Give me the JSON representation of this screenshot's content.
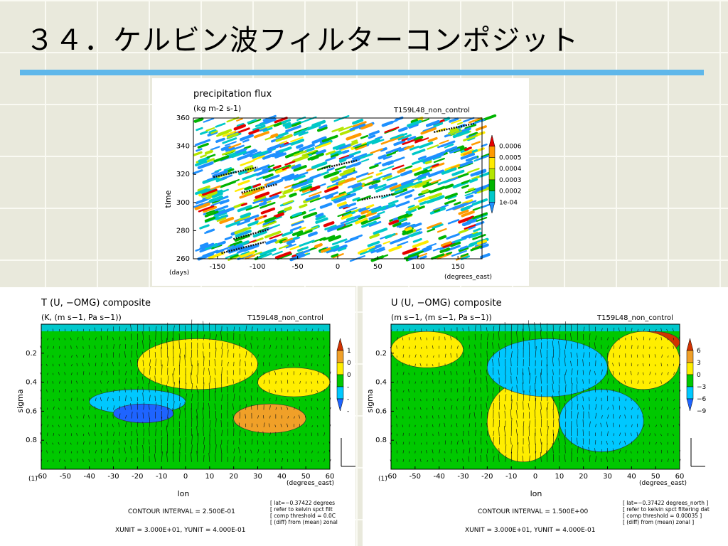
{
  "slide": {
    "title": "３４．ケルビン波フィルターコンポジット"
  },
  "colors": {
    "accent_rule": "#5fb7ea",
    "palette_precip": [
      "#1e90ff",
      "#00c8c8",
      "#00b400",
      "#b4e600",
      "#ffeb00",
      "#ff9a00",
      "#e60000"
    ],
    "palette_comp": [
      "#1e64ff",
      "#00c8ff",
      "#00c800",
      "#ffee00",
      "#f0a028",
      "#d23200"
    ]
  },
  "chart_data": [
    {
      "type": "heatmap",
      "title": "precipitation flux",
      "units": "(kg m-2 s-1)",
      "run_label": "T159L48_non_control",
      "xlabel": "(degrees_east)",
      "ylabel": "time",
      "y_units": "(days)",
      "x_ticks": [
        -150,
        -100,
        -50,
        0,
        50,
        100,
        150
      ],
      "y_ticks": [
        260,
        280,
        300,
        320,
        340,
        360
      ],
      "xlim": [
        -180,
        180
      ],
      "ylim": [
        260,
        360
      ],
      "colorbar": [
        "1e-04",
        "0.0002",
        "0.0003",
        "0.0004",
        "0.0005",
        "0.0006"
      ],
      "kelvin_tracks": [
        {
          "x": [
            -145,
            -90
          ],
          "y": [
            264,
            272
          ]
        },
        {
          "x": [
            -130,
            -85
          ],
          "y": [
            274,
            281
          ]
        },
        {
          "x": [
            -120,
            -75
          ],
          "y": [
            307,
            313
          ]
        },
        {
          "x": [
            -155,
            -100
          ],
          "y": [
            318,
            325
          ]
        },
        {
          "x": [
            -20,
            25
          ],
          "y": [
            324,
            330
          ]
        },
        {
          "x": [
            30,
            70
          ],
          "y": [
            302,
            306
          ]
        },
        {
          "x": [
            120,
            170
          ],
          "y": [
            350,
            356
          ]
        }
      ]
    },
    {
      "type": "heatmap",
      "title": "T (U, −OMG) composite",
      "units": "(K, (m s−1, Pa s−1))",
      "run_label": "T159L48_non_control",
      "xlabel": "lon",
      "x_units": "(degrees_east)",
      "ylabel": "sigma",
      "y_units": "(1)",
      "x_ticks": [
        -60,
        -50,
        -40,
        -30,
        -20,
        -10,
        0,
        10,
        20,
        30,
        40,
        50,
        60
      ],
      "y_ticks": [
        "0.2",
        "0.4",
        "0.6",
        "0.8"
      ],
      "xlim": [
        -60,
        60
      ],
      "ylim": [
        1.0,
        0.0
      ],
      "colorbar": [
        "1",
        "0",
        "0",
        "-",
        "-",
        "-"
      ],
      "contour_interval": "CONTOUR INTERVAL = 2.500E-01",
      "vector_units": "XUNIT = 3.000E+01, YUNIT = 4.000E-01",
      "notes": [
        "[ lat=−0.37422 degrees",
        "[ refer to kelvin spct filt",
        "[ comp threshold = 0.0C",
        "[ (diff) from (mean) zonal"
      ],
      "anomaly_regions": [
        {
          "level": "warm_strong",
          "lon": [
            -10,
            6
          ],
          "sigma": [
            0.15,
            0.3
          ]
        },
        {
          "level": "warm",
          "lon": [
            -20,
            30
          ],
          "sigma": [
            0.1,
            0.45
          ]
        },
        {
          "level": "warm",
          "lon": [
            30,
            60
          ],
          "sigma": [
            0.3,
            0.5
          ]
        },
        {
          "level": "warm_moderate",
          "lon": [
            20,
            50
          ],
          "sigma": [
            0.55,
            0.75
          ]
        },
        {
          "level": "cool",
          "lon": [
            -40,
            0
          ],
          "sigma": [
            0.45,
            0.62
          ]
        },
        {
          "level": "cool_strong",
          "lon": [
            -30,
            -5
          ],
          "sigma": [
            0.55,
            0.68
          ]
        }
      ]
    },
    {
      "type": "heatmap",
      "title": "U (U, −OMG) composite",
      "units": "(m s−1, (m s−1, Pa s−1))",
      "run_label": "T159L48_non_control",
      "xlabel": "lon",
      "x_units": "(degrees_east)",
      "ylabel": "sigma",
      "y_units": "(1)",
      "x_ticks": [
        -60,
        -50,
        -40,
        -30,
        -20,
        -10,
        0,
        10,
        20,
        30,
        40,
        50,
        60
      ],
      "y_ticks": [
        "0.2",
        "0.4",
        "0.6",
        "0.8"
      ],
      "xlim": [
        -60,
        60
      ],
      "ylim": [
        1.0,
        0.0
      ],
      "colorbar": [
        "6",
        "3",
        "0",
        "−3",
        "−6",
        "−9"
      ],
      "contour_interval": "CONTOUR INTERVAL = 1.500E+00",
      "vector_units": "XUNIT = 3.000E+01, YUNIT = 4.000E-01",
      "notes": [
        "[ lat=−0.37422 degrees_north ]",
        "[ refer to kelvin spct filtering dat",
        "[ comp threshold = 0.00035 ]",
        "[ (diff) from (mean) zonal ]"
      ],
      "anomaly_regions": [
        {
          "level": "warm",
          "lon": [
            -60,
            -30
          ],
          "sigma": [
            0.05,
            0.3
          ]
        },
        {
          "level": "warm_strong",
          "lon": [
            38,
            60
          ],
          "sigma": [
            0.05,
            0.2
          ]
        },
        {
          "level": "warm",
          "lon": [
            30,
            60
          ],
          "sigma": [
            0.05,
            0.45
          ]
        },
        {
          "level": "warm",
          "lon": [
            -20,
            10
          ],
          "sigma": [
            0.4,
            0.95
          ]
        },
        {
          "level": "cool",
          "lon": [
            -20,
            30
          ],
          "sigma": [
            0.1,
            0.5
          ]
        },
        {
          "level": "cool",
          "lon": [
            10,
            45
          ],
          "sigma": [
            0.45,
            0.88
          ]
        }
      ]
    }
  ]
}
